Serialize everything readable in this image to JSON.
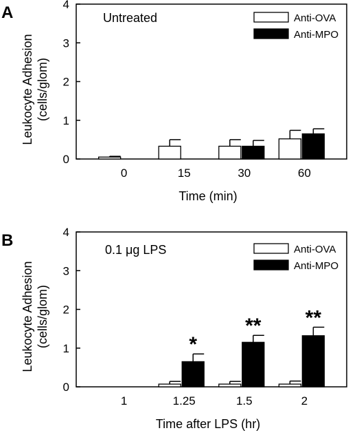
{
  "chart_data": [
    {
      "type": "bar",
      "panel_label": "A",
      "annotation": "Untreated",
      "xlabel": "Time (min)",
      "ylabel": [
        "Leukocyte Adhesion",
        "(cells/glom)"
      ],
      "categories": [
        "0",
        "15",
        "30",
        "60"
      ],
      "series": [
        {
          "name": "Anti-OVA",
          "values": [
            0.05,
            0.33,
            0.33,
            0.52
          ],
          "errors": [
            0.02,
            0.17,
            0.17,
            0.22
          ],
          "labels": [
            "",
            "",
            "",
            ""
          ]
        },
        {
          "name": "Anti-MPO",
          "values": [
            0,
            0,
            0.33,
            0.65
          ],
          "errors": [
            0,
            0,
            0.15,
            0.13
          ],
          "labels": [
            "",
            "",
            "",
            ""
          ]
        }
      ],
      "ylim": [
        0,
        4
      ],
      "yticks": [
        0,
        1,
        2,
        3,
        4
      ],
      "legend": "top-right",
      "colors": {
        "Anti-OVA": "#ffffff",
        "Anti-MPO": "#000000"
      }
    },
    {
      "type": "bar",
      "panel_label": "B",
      "annotation": "0.1 μg LPS",
      "xlabel": "Time after LPS (hr)",
      "ylabel": [
        "Leukocyte Adhesion",
        "(cells/glom)"
      ],
      "categories": [
        "1",
        "1.25",
        "1.5",
        "2"
      ],
      "series": [
        {
          "name": "Anti-OVA",
          "values": [
            0,
            0.07,
            0.07,
            0.07
          ],
          "errors": [
            0,
            0.07,
            0.07,
            0.08
          ],
          "labels": [
            "",
            "",
            "",
            ""
          ]
        },
        {
          "name": "Anti-MPO",
          "values": [
            0,
            0.65,
            1.15,
            1.32
          ],
          "errors": [
            0,
            0.2,
            0.18,
            0.22
          ],
          "labels": [
            "",
            "*",
            "**",
            "**"
          ]
        }
      ],
      "ylim": [
        0,
        4
      ],
      "yticks": [
        0,
        1,
        2,
        3,
        4
      ],
      "legend": "top-right",
      "colors": {
        "Anti-OVA": "#ffffff",
        "Anti-MPO": "#000000"
      }
    }
  ]
}
